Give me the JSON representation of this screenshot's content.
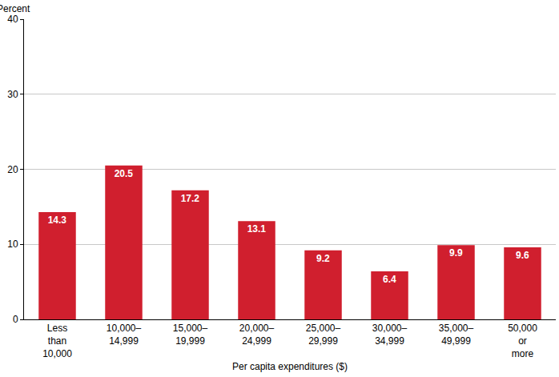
{
  "chart_data": {
    "type": "bar",
    "y_label": "Percent",
    "x_label": "Per capita expenditures ($)",
    "categories": [
      "Less than 10,000",
      "10,000–14,999",
      "15,000–19,999",
      "20,000–24,999",
      "25,000–29,999",
      "30,000–34,999",
      "35,000–49,999",
      "50,000 or more"
    ],
    "values": [
      14.3,
      20.5,
      17.2,
      13.1,
      9.2,
      6.4,
      9.9,
      9.6
    ],
    "color": "#d01f2e",
    "ylim": [
      0,
      40
    ],
    "yticks": [
      0,
      10,
      20,
      30,
      40
    ],
    "grid": true,
    "data_labels": true
  }
}
